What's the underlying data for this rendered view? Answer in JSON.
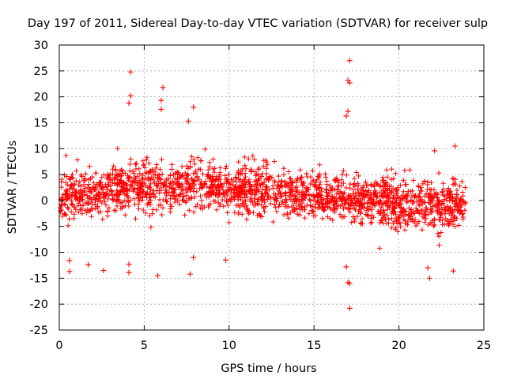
{
  "chart_data": {
    "type": "scatter",
    "title": "Day 197 of 2011, Sidereal Day-to-day VTEC variation (SDTVAR) for receiver sulp",
    "xlabel": "GPS time / hours",
    "ylabel": "SDTVAR / TECUs",
    "xlim": [
      0,
      25
    ],
    "ylim": [
      -25,
      30
    ],
    "xticks": [
      "0",
      "5",
      "10",
      "15",
      "20",
      "25"
    ],
    "yticks": [
      "-25",
      "-20",
      "-15",
      "-10",
      "-5",
      "0",
      "5",
      "10",
      "15",
      "20",
      "25",
      "30"
    ],
    "grid": true,
    "marker": "+",
    "series": [
      {
        "name": "SDTVAR",
        "color": "#ff0000",
        "description": "dense cloud of points from 0 to 24 h; centre near +1 TECU rising to about +3 around 5-8 h, declining to about -1 near 22 h",
        "outliers": [
          {
            "x": 4.2,
            "y": 24.8
          },
          {
            "x": 4.2,
            "y": 20.2
          },
          {
            "x": 4.1,
            "y": 18.8
          },
          {
            "x": 6.1,
            "y": 21.8
          },
          {
            "x": 6.0,
            "y": 19.3
          },
          {
            "x": 6.0,
            "y": 17.6
          },
          {
            "x": 7.9,
            "y": 18.0
          },
          {
            "x": 7.6,
            "y": 15.3
          },
          {
            "x": 17.1,
            "y": 27.0
          },
          {
            "x": 17.0,
            "y": 23.2
          },
          {
            "x": 17.1,
            "y": 22.7
          },
          {
            "x": 17.0,
            "y": 17.2
          },
          {
            "x": 16.9,
            "y": 16.3
          },
          {
            "x": 0.6,
            "y": -13.7
          },
          {
            "x": 0.6,
            "y": -11.6
          },
          {
            "x": 1.7,
            "y": -12.4
          },
          {
            "x": 2.6,
            "y": -13.5
          },
          {
            "x": 4.1,
            "y": -13.9
          },
          {
            "x": 4.1,
            "y": -12.3
          },
          {
            "x": 5.8,
            "y": -14.5
          },
          {
            "x": 7.7,
            "y": -14.2
          },
          {
            "x": 7.9,
            "y": -11.0
          },
          {
            "x": 9.8,
            "y": -11.5
          },
          {
            "x": 16.9,
            "y": -12.8
          },
          {
            "x": 17.0,
            "y": -15.8
          },
          {
            "x": 17.1,
            "y": -16.0
          },
          {
            "x": 17.1,
            "y": -20.8
          },
          {
            "x": 21.8,
            "y": -15.0
          },
          {
            "x": 21.7,
            "y": -13.0
          },
          {
            "x": 23.2,
            "y": -13.6
          },
          {
            "x": 23.3,
            "y": 10.5
          },
          {
            "x": 22.1,
            "y": 9.6
          }
        ]
      }
    ]
  }
}
